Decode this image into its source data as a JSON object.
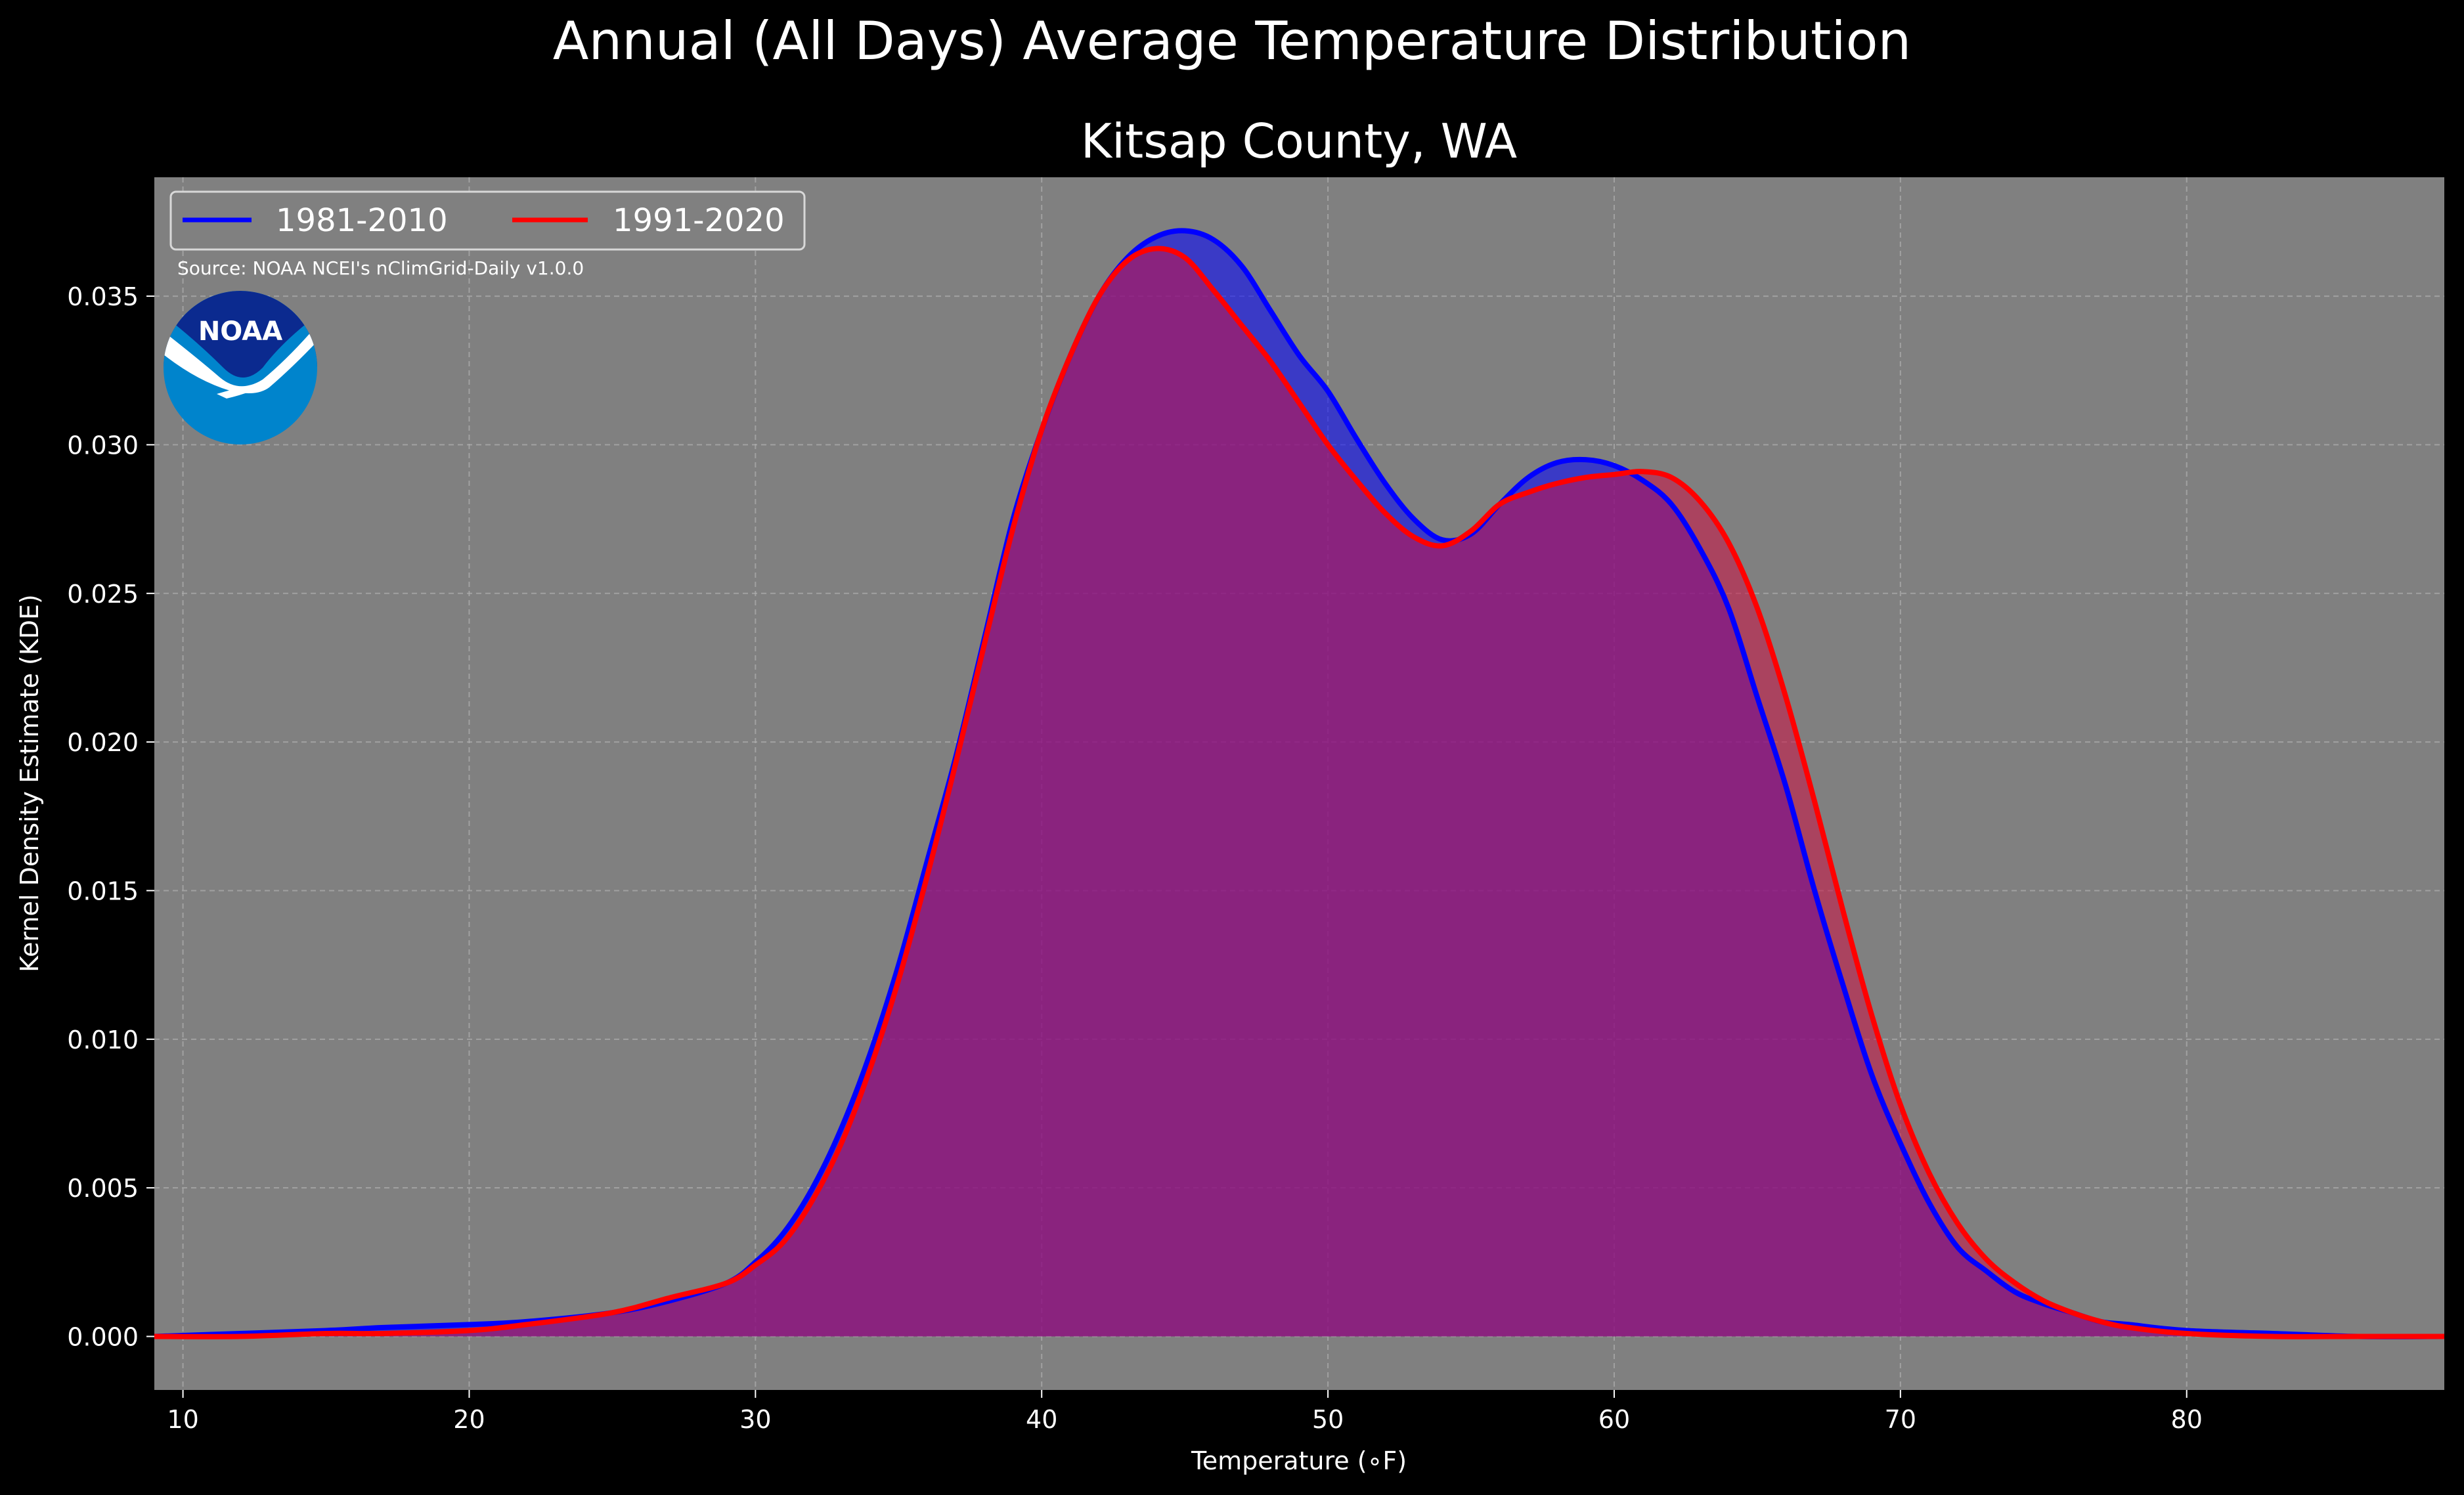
{
  "chart_data": {
    "type": "area",
    "suptitle": "Annual (All Days) Average Temperature Distribution",
    "title": "Kitsap County, WA",
    "xlabel": "Temperature (∘F)",
    "ylabel": "Kernel Density Estimate (KDE)",
    "xlim": [
      9,
      89
    ],
    "ylim": [
      -0.0018,
      0.039
    ],
    "xticks": [
      10,
      20,
      30,
      40,
      50,
      60,
      70,
      80
    ],
    "yticks": [
      0.0,
      0.005,
      0.01,
      0.015,
      0.02,
      0.025,
      0.03,
      0.035
    ],
    "ytick_labels": [
      "0.000",
      "0.005",
      "0.010",
      "0.015",
      "0.020",
      "0.025",
      "0.030",
      "0.035"
    ],
    "grid": true,
    "legend_position": "top-left",
    "source_note": "Source: NOAA NCEI's nClimGrid-Daily v1.0.0",
    "logo_text": "NOAA",
    "series": [
      {
        "name": "1981-2010",
        "color": "#0000ff",
        "fill": "#0000ff",
        "x": [
          9,
          12,
          15,
          17,
          20,
          22,
          25,
          27,
          29,
          30,
          31,
          32,
          33,
          34,
          35,
          36,
          37,
          38,
          39,
          40,
          41,
          42,
          43,
          44,
          45,
          46,
          47,
          48,
          49,
          50,
          51,
          52,
          53,
          54,
          55,
          56,
          57,
          58,
          59,
          60,
          61,
          62,
          63,
          64,
          65,
          66,
          67,
          68,
          69,
          70,
          71,
          72,
          73,
          74,
          75,
          76,
          77,
          78,
          80,
          83,
          86,
          89
        ],
        "y": [
          0.0,
          0.0001,
          0.0002,
          0.0003,
          0.0004,
          0.0005,
          0.0008,
          0.0012,
          0.0018,
          0.0025,
          0.0035,
          0.005,
          0.007,
          0.0095,
          0.0125,
          0.016,
          0.0195,
          0.0235,
          0.0275,
          0.0305,
          0.033,
          0.035,
          0.0363,
          0.037,
          0.0372,
          0.0369,
          0.036,
          0.0345,
          0.033,
          0.0318,
          0.0302,
          0.0287,
          0.0275,
          0.0268,
          0.027,
          0.028,
          0.0289,
          0.0294,
          0.0295,
          0.0293,
          0.0288,
          0.028,
          0.0265,
          0.0245,
          0.0215,
          0.0185,
          0.015,
          0.0118,
          0.0088,
          0.0065,
          0.0045,
          0.003,
          0.0022,
          0.0015,
          0.0011,
          0.0008,
          0.0005,
          0.0004,
          0.0002,
          0.0001,
          0.0,
          0.0
        ]
      },
      {
        "name": "1991-2020",
        "color": "#ff0000",
        "fill": "#cc1144",
        "x": [
          9,
          12,
          15,
          17,
          20,
          22,
          25,
          27,
          29,
          30,
          31,
          32,
          33,
          34,
          35,
          36,
          37,
          38,
          39,
          40,
          41,
          42,
          43,
          44,
          45,
          46,
          47,
          48,
          49,
          50,
          51,
          52,
          53,
          54,
          55,
          56,
          57,
          58,
          59,
          60,
          61,
          62,
          63,
          64,
          65,
          66,
          67,
          68,
          69,
          70,
          71,
          72,
          73,
          74,
          75,
          76,
          77,
          78,
          80,
          83,
          86,
          89
        ],
        "y": [
          0.0,
          0.0,
          0.0001,
          0.0001,
          0.0002,
          0.0004,
          0.0008,
          0.0013,
          0.0018,
          0.0024,
          0.0032,
          0.0046,
          0.0065,
          0.009,
          0.012,
          0.0155,
          0.0193,
          0.0233,
          0.0272,
          0.0305,
          0.033,
          0.035,
          0.0362,
          0.0366,
          0.0363,
          0.0352,
          0.034,
          0.0328,
          0.0314,
          0.03,
          0.0288,
          0.0277,
          0.0269,
          0.0266,
          0.0271,
          0.028,
          0.0284,
          0.0287,
          0.0289,
          0.029,
          0.0291,
          0.0289,
          0.0281,
          0.0267,
          0.0245,
          0.0215,
          0.018,
          0.0143,
          0.0108,
          0.0078,
          0.0055,
          0.0038,
          0.0026,
          0.0018,
          0.0012,
          0.0008,
          0.0005,
          0.0003,
          0.0001,
          0.0,
          0.0,
          0.0
        ]
      }
    ]
  }
}
